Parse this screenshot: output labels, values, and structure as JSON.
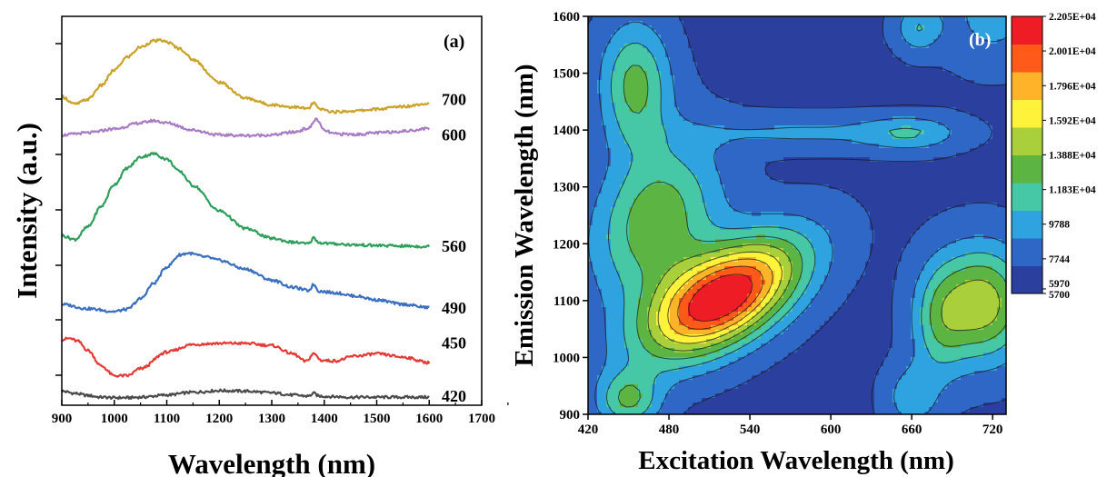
{
  "chart_data": [
    {
      "type": "line",
      "panel_label": "(a)",
      "xlabel": "Wavelength (nm)",
      "ylabel": "Intensity (a.u.)",
      "xlim": [
        900,
        1700
      ],
      "xticks": [
        "900",
        "1000",
        "1100",
        "1200",
        "1300",
        "1400",
        "1500",
        "1600",
        "1700"
      ],
      "yticks_labeled": false,
      "series": [
        {
          "name": "420",
          "color": "#4a4a4a",
          "x": [
            900,
            925,
            950,
            975,
            1000,
            1025,
            1050,
            1100,
            1150,
            1200,
            1250,
            1300,
            1340,
            1370,
            1380,
            1390,
            1420,
            1450,
            1500,
            1550,
            1600
          ],
          "y": [
            0.14,
            0.1,
            0.06,
            0.03,
            0.02,
            0.02,
            0.03,
            0.07,
            0.12,
            0.15,
            0.14,
            0.11,
            0.07,
            0.05,
            0.1,
            0.05,
            0.04,
            0.03,
            0.03,
            0.03,
            0.03
          ]
        },
        {
          "name": "450",
          "color": "#e53935",
          "x": [
            900,
            915,
            930,
            950,
            975,
            1000,
            1025,
            1050,
            1100,
            1150,
            1200,
            1250,
            1300,
            1340,
            1365,
            1380,
            1395,
            1420,
            1460,
            1500,
            1550,
            1600
          ],
          "y": [
            1.08,
            1.1,
            1.05,
            0.88,
            0.6,
            0.42,
            0.42,
            0.55,
            0.85,
            0.99,
            1.01,
            1.01,
            0.97,
            0.82,
            0.68,
            0.82,
            0.7,
            0.69,
            0.78,
            0.82,
            0.76,
            0.66
          ]
        },
        {
          "name": "490",
          "color": "#3a6fbf",
          "x": [
            900,
            950,
            1000,
            1025,
            1050,
            1075,
            1100,
            1125,
            1140,
            1175,
            1200,
            1250,
            1300,
            1340,
            1370,
            1380,
            1390,
            1420,
            1460,
            1500,
            1550,
            1600
          ],
          "y": [
            1.72,
            1.64,
            1.59,
            1.63,
            1.82,
            2.1,
            2.4,
            2.62,
            2.65,
            2.58,
            2.52,
            2.36,
            2.16,
            2.03,
            1.97,
            2.08,
            1.96,
            1.93,
            1.87,
            1.8,
            1.72,
            1.66
          ]
        },
        {
          "name": "560",
          "color": "#2e9e5b",
          "x": [
            900,
            925,
            950,
            975,
            1000,
            1025,
            1050,
            1075,
            1100,
            1125,
            1150,
            1200,
            1250,
            1300,
            1340,
            1370,
            1380,
            1390,
            1420,
            1460,
            1500,
            1550,
            1600
          ],
          "y": [
            2.97,
            2.9,
            3.13,
            3.5,
            3.9,
            4.2,
            4.4,
            4.46,
            4.36,
            4.13,
            3.88,
            3.42,
            3.1,
            2.92,
            2.85,
            2.82,
            2.93,
            2.84,
            2.82,
            2.8,
            2.79,
            2.78,
            2.77
          ]
        },
        {
          "name": "600",
          "color": "#a97bc4",
          "x": [
            900,
            950,
            1000,
            1050,
            1075,
            1100,
            1150,
            1200,
            1250,
            1300,
            1340,
            1370,
            1385,
            1400,
            1420,
            1460,
            1500,
            1550,
            1600
          ],
          "y": [
            4.8,
            4.84,
            4.91,
            5.02,
            5.06,
            5.02,
            4.89,
            4.8,
            4.79,
            4.8,
            4.85,
            4.92,
            5.09,
            4.88,
            4.82,
            4.81,
            4.84,
            4.87,
            4.92
          ]
        },
        {
          "name": "700",
          "color": "#c9a227",
          "x": [
            900,
            925,
            950,
            975,
            1000,
            1025,
            1050,
            1075,
            1090,
            1100,
            1125,
            1150,
            1200,
            1250,
            1300,
            1340,
            1370,
            1380,
            1390,
            1420,
            1460,
            1500,
            1550,
            1600
          ],
          "y": [
            5.5,
            5.36,
            5.45,
            5.7,
            5.98,
            6.22,
            6.4,
            6.51,
            6.52,
            6.49,
            6.37,
            6.17,
            5.76,
            5.47,
            5.35,
            5.31,
            5.28,
            5.39,
            5.27,
            5.22,
            5.24,
            5.27,
            5.32,
            5.38
          ]
        }
      ],
      "curve_labels": [
        "700",
        "600",
        "560",
        "490",
        "450",
        "420"
      ]
    },
    {
      "type": "contour",
      "panel_label": "(b)",
      "xlabel": "Excitation Wavelength (nm)",
      "ylabel": "Emission Wavelength (nm)",
      "xlim": [
        420,
        730
      ],
      "ylim": [
        900,
        1600
      ],
      "xticks": [
        "420",
        "480",
        "540",
        "600",
        "660",
        "720"
      ],
      "yticks": [
        "900",
        "1000",
        "1100",
        "1200",
        "1300",
        "1400",
        "1500",
        "1600"
      ],
      "background_level": 7000,
      "peaks": [
        {
          "x": 520,
          "y": 1105,
          "amp": 15500,
          "sx": 40,
          "sy": 72,
          "rho": 0.55
        },
        {
          "x": 470,
          "y": 1240,
          "amp": 6500,
          "sx": 32,
          "sy": 95,
          "rho": 0.25
        },
        {
          "x": 455,
          "y": 1480,
          "amp": 5800,
          "sx": 18,
          "sy": 75,
          "rho": 0
        },
        {
          "x": 712,
          "y": 1095,
          "amp": 8000,
          "sx": 24,
          "sy": 70,
          "rho": 0
        },
        {
          "x": 680,
          "y": 1060,
          "amp": 3500,
          "sx": 14,
          "sy": 70,
          "rho": 0
        },
        {
          "x": 450,
          "y": 925,
          "amp": 5200,
          "sx": 16,
          "sy": 35,
          "rho": 0
        },
        {
          "x": 580,
          "y": 1395,
          "amp": 2200,
          "sx": 60,
          "sy": 22,
          "rho": 0
        },
        {
          "x": 660,
          "y": 1395,
          "amp": 3000,
          "sx": 25,
          "sy": 22,
          "rho": 0
        },
        {
          "x": 720,
          "y": 1600,
          "amp": 2600,
          "sx": 25,
          "sy": 60,
          "rho": 0
        },
        {
          "x": 660,
          "y": 930,
          "amp": 3000,
          "sx": 14,
          "sy": 40,
          "rho": 0
        },
        {
          "x": 665,
          "y": 1580,
          "amp": 3500,
          "sx": 12,
          "sy": 30,
          "rho": 0
        }
      ],
      "colorbar": {
        "min": 5700,
        "max": 22050,
        "ticks": [
          "2.205E+04",
          "2.001E+04",
          "1.796E+04",
          "1.592E+04",
          "1.388E+04",
          "1.183E+04",
          "9788",
          "7744",
          "5970",
          "5700"
        ],
        "colormap": [
          "#2a3f9e",
          "#2f67c7",
          "#2ea3e0",
          "#46c8a6",
          "#5cb543",
          "#a9cf3a",
          "#fff23a",
          "#ffb328",
          "#ff5a1a",
          "#ee1c25"
        ]
      }
    }
  ]
}
